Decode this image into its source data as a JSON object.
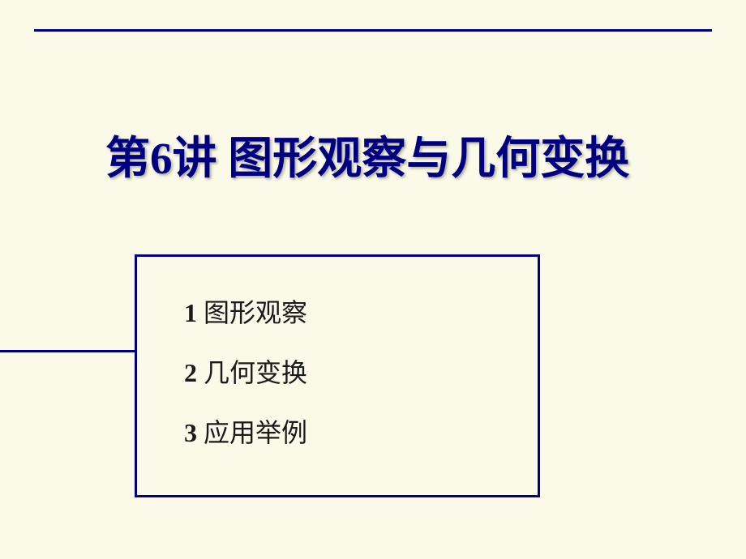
{
  "colors": {
    "background": "#fbfae9",
    "accent": "#000080",
    "text": "#1a1a1a"
  },
  "title": {
    "prefix": "第",
    "number": "6",
    "suffix": "讲  图形观察与几何变换"
  },
  "items": [
    {
      "num": "1",
      "label": "图形观察"
    },
    {
      "num": "2",
      "label": "几何变换"
    },
    {
      "num": "3",
      "label": "应用举例"
    }
  ]
}
